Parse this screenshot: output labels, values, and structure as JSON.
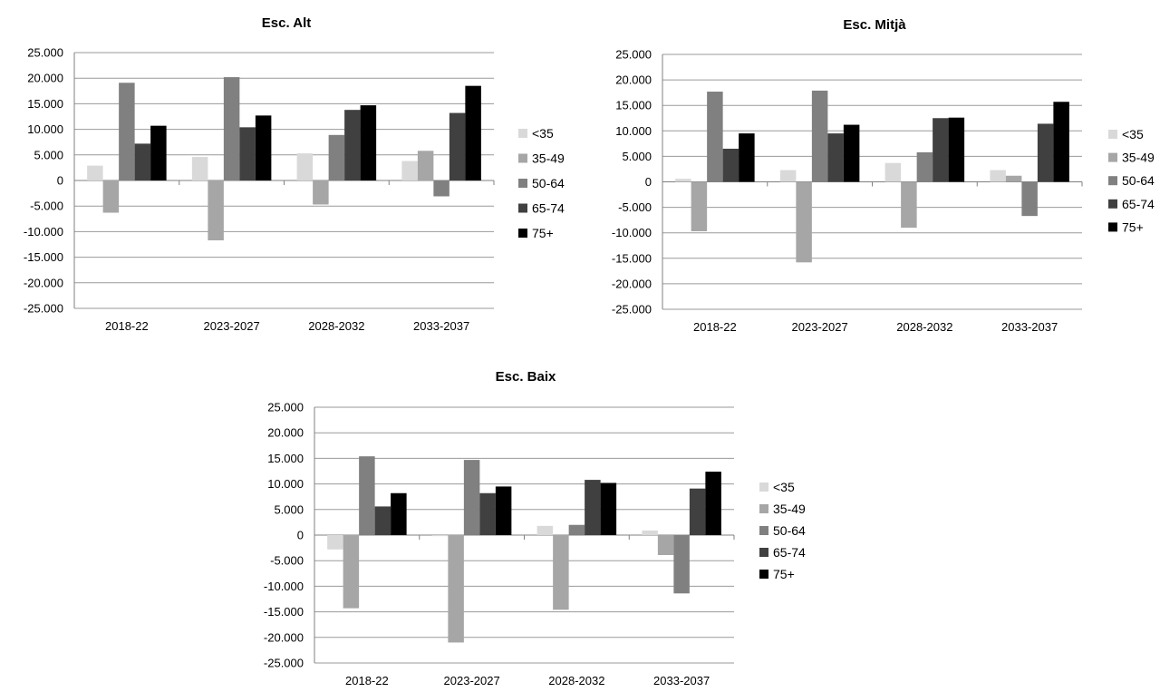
{
  "chart_data": [
    {
      "type": "bar",
      "title": "Esc. Alt",
      "categories": [
        "2018-22",
        "2023-2027",
        "2028-2032",
        "2033-2037"
      ],
      "ylim": [
        -25000,
        25000
      ],
      "yticks": [
        25000,
        20000,
        15000,
        10000,
        5000,
        0,
        -5000,
        -10000,
        -15000,
        -20000,
        -25000
      ],
      "ytick_labels": [
        "25.000",
        "20.000",
        "15.000",
        "10.000",
        "5.000",
        "0",
        "-5.000",
        "-10.000",
        "-15.000",
        "-20.000",
        "-25.000"
      ],
      "grid": true,
      "legend_position": "right",
      "series": [
        {
          "name": "<35",
          "color": "#d9d9d9",
          "values": [
            2900,
            4600,
            5300,
            3800
          ]
        },
        {
          "name": "35-49",
          "color": "#a6a6a6",
          "values": [
            -6300,
            -11700,
            -4700,
            5800
          ]
        },
        {
          "name": "50-64",
          "color": "#808080",
          "values": [
            19100,
            20200,
            8900,
            -3100
          ]
        },
        {
          "name": "65-74",
          "color": "#404040",
          "values": [
            7200,
            10400,
            13800,
            13200
          ]
        },
        {
          "name": "75+",
          "color": "#000000",
          "values": [
            10700,
            12700,
            14700,
            18500
          ]
        }
      ]
    },
    {
      "type": "bar",
      "title": "Esc. Mitjà",
      "categories": [
        "2018-22",
        "2023-2027",
        "2028-2032",
        "2033-2037"
      ],
      "ylim": [
        -25000,
        25000
      ],
      "yticks": [
        25000,
        20000,
        15000,
        10000,
        5000,
        0,
        -5000,
        -10000,
        -15000,
        -20000,
        -25000
      ],
      "ytick_labels": [
        "25.000",
        "20.000",
        "15.000",
        "10.000",
        "5.000",
        "0",
        "-5.000",
        "-10.000",
        "-15.000",
        "-20.000",
        "-25.000"
      ],
      "grid": true,
      "legend_position": "right",
      "series": [
        {
          "name": "<35",
          "color": "#d9d9d9",
          "values": [
            600,
            2300,
            3700,
            2300
          ]
        },
        {
          "name": "35-49",
          "color": "#a6a6a6",
          "values": [
            -9700,
            -15800,
            -9000,
            1200
          ]
        },
        {
          "name": "50-64",
          "color": "#808080",
          "values": [
            17700,
            17900,
            5800,
            -6700
          ]
        },
        {
          "name": "65-74",
          "color": "#404040",
          "values": [
            6500,
            9500,
            12500,
            11400
          ]
        },
        {
          "name": "75+",
          "color": "#000000",
          "values": [
            9500,
            11200,
            12600,
            15700
          ]
        }
      ]
    },
    {
      "type": "bar",
      "title": "Esc. Baix",
      "categories": [
        "2018-22",
        "2023-2027",
        "2028-2032",
        "2033-2037"
      ],
      "ylim": [
        -25000,
        25000
      ],
      "yticks": [
        25000,
        20000,
        15000,
        10000,
        5000,
        0,
        -5000,
        -10000,
        -15000,
        -20000,
        -25000
      ],
      "ytick_labels": [
        "25.000",
        "20.000",
        "15.000",
        "10.000",
        "5.000",
        "0",
        "-5.000",
        "-10.000",
        "-15.000",
        "-20.000",
        "-25.000"
      ],
      "grid": true,
      "legend_position": "right",
      "series": [
        {
          "name": "<35",
          "color": "#d9d9d9",
          "values": [
            -2800,
            -200,
            1800,
            900
          ]
        },
        {
          "name": "35-49",
          "color": "#a6a6a6",
          "values": [
            -14300,
            -21000,
            -14600,
            -3900
          ]
        },
        {
          "name": "50-64",
          "color": "#808080",
          "values": [
            15400,
            14700,
            2000,
            -11400
          ]
        },
        {
          "name": "65-74",
          "color": "#404040",
          "values": [
            5600,
            8200,
            10800,
            9100
          ]
        },
        {
          "name": "75+",
          "color": "#000000",
          "values": [
            8200,
            9500,
            10200,
            12400
          ]
        }
      ]
    }
  ]
}
